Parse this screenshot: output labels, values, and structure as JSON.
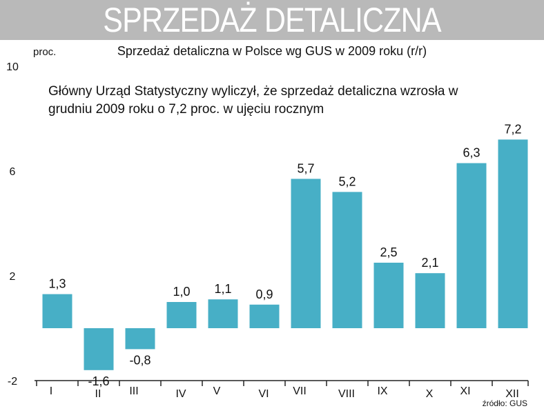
{
  "header": {
    "banner_title": "SPRZEDAŻ DETALICZNA"
  },
  "chart_data": {
    "type": "bar",
    "title": "Sprzedaż detaliczna w Polsce wg GUS w 2009 roku (r/r)",
    "ylabel": "proc.",
    "ylim": [
      -2,
      10
    ],
    "yticks": [
      "10",
      "6",
      "2",
      "-2"
    ],
    "categories": [
      "I",
      "II",
      "III",
      "IV",
      "V",
      "VI",
      "VII",
      "VIII",
      "IX",
      "X",
      "XI",
      "XII"
    ],
    "values": [
      1.3,
      -1.6,
      -0.8,
      1.0,
      1.1,
      0.9,
      5.7,
      5.2,
      2.5,
      2.1,
      6.3,
      7.2
    ],
    "data_labels": [
      "1,3",
      "-1,6",
      "-0,8",
      "1,0",
      "1,1",
      "0,9",
      "5,7",
      "5,2",
      "2,5",
      "2,1",
      "6,3",
      "7,2"
    ],
    "annotation": "Główny Urząd Statystyczny wyliczył, że sprzedaż detaliczna wzrosła w grudniu 2009 roku o 7,2 proc. w ujęciu rocznym",
    "source": "źródło: GUS",
    "bar_color": "#47afc6",
    "grid": false
  }
}
